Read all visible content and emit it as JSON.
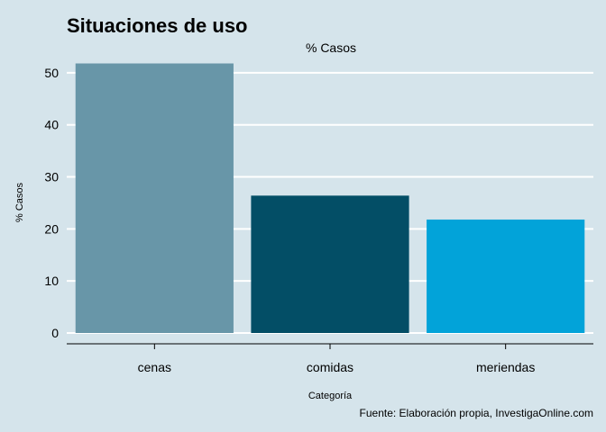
{
  "chart_data": {
    "type": "bar",
    "title": "Situaciones de uso",
    "subtitle": "% Casos",
    "xlabel": "Categoría",
    "ylabel": "% Casos",
    "caption": "Fuente: Elaboración propia, InvestigaOnline.com",
    "categories": [
      "cenas",
      "comidas",
      "meriendas"
    ],
    "values": [
      51.8,
      26.4,
      21.8
    ],
    "colors": [
      "#6896a8",
      "#034e66",
      "#02a3d9"
    ],
    "ylim": [
      0,
      55
    ],
    "yticks": [
      0,
      10,
      20,
      30,
      40,
      50
    ],
    "grid": true,
    "legend": "none"
  }
}
